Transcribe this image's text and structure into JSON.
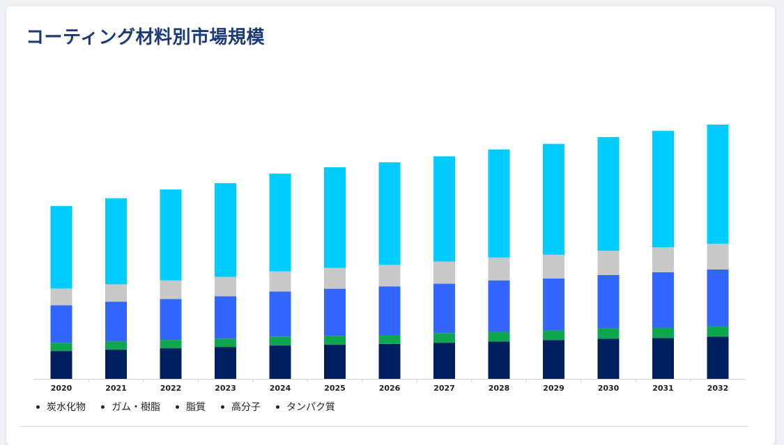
{
  "title": "コーティング材料別市場規模",
  "colors": {
    "title": "#1b3a7a",
    "carbohydrate": "#001f5f",
    "gum_resin": "#10a650",
    "lipid": "#3366ff",
    "polymer": "#c8c8c8",
    "protein": "#00ccff"
  },
  "legend": [
    {
      "label": "炭水化物"
    },
    {
      "label": "ガム・樹脂"
    },
    {
      "label": "脂質"
    },
    {
      "label": "高分子"
    },
    {
      "label": "タンパク質"
    }
  ],
  "chart_data": {
    "type": "bar",
    "stacked": true,
    "title": "コーティング材料別市場規模",
    "xlabel": "",
    "ylabel": "",
    "y_axis_visible": false,
    "grid": false,
    "legend_position": "bottom-left",
    "ylim": [
      0,
      130
    ],
    "categories": [
      "2020",
      "2021",
      "2022",
      "2023",
      "2024",
      "2025",
      "2026",
      "2027",
      "2028",
      "2029",
      "2030",
      "2031",
      "2032"
    ],
    "series": [
      {
        "name": "炭水化物",
        "color": "#001f5f",
        "values": [
          14.0,
          14.7,
          15.4,
          16.1,
          16.8,
          17.2,
          17.6,
          18.2,
          18.8,
          19.5,
          20.2,
          20.6,
          21.3
        ]
      },
      {
        "name": "ガム・樹脂",
        "color": "#10a650",
        "values": [
          4.2,
          4.2,
          4.2,
          4.2,
          4.5,
          4.5,
          4.5,
          4.9,
          4.9,
          4.9,
          5.2,
          5.2,
          5.2
        ]
      },
      {
        "name": "脂質",
        "color": "#3366ff",
        "values": [
          18.9,
          20.0,
          20.6,
          21.3,
          22.7,
          23.7,
          24.5,
          24.8,
          25.9,
          26.2,
          26.9,
          27.9,
          28.6
        ]
      },
      {
        "name": "高分子",
        "color": "#c8c8c8",
        "values": [
          8.4,
          8.7,
          9.4,
          9.8,
          10.1,
          10.5,
          10.8,
          11.2,
          11.5,
          11.9,
          12.2,
          12.6,
          12.9
        ]
      },
      {
        "name": "タンパク質",
        "color": "#00ccff",
        "values": [
          41.6,
          43.4,
          45.8,
          47.2,
          49.3,
          50.7,
          51.7,
          53.0,
          54.5,
          55.9,
          57.3,
          58.7,
          60.1
        ]
      }
    ]
  }
}
